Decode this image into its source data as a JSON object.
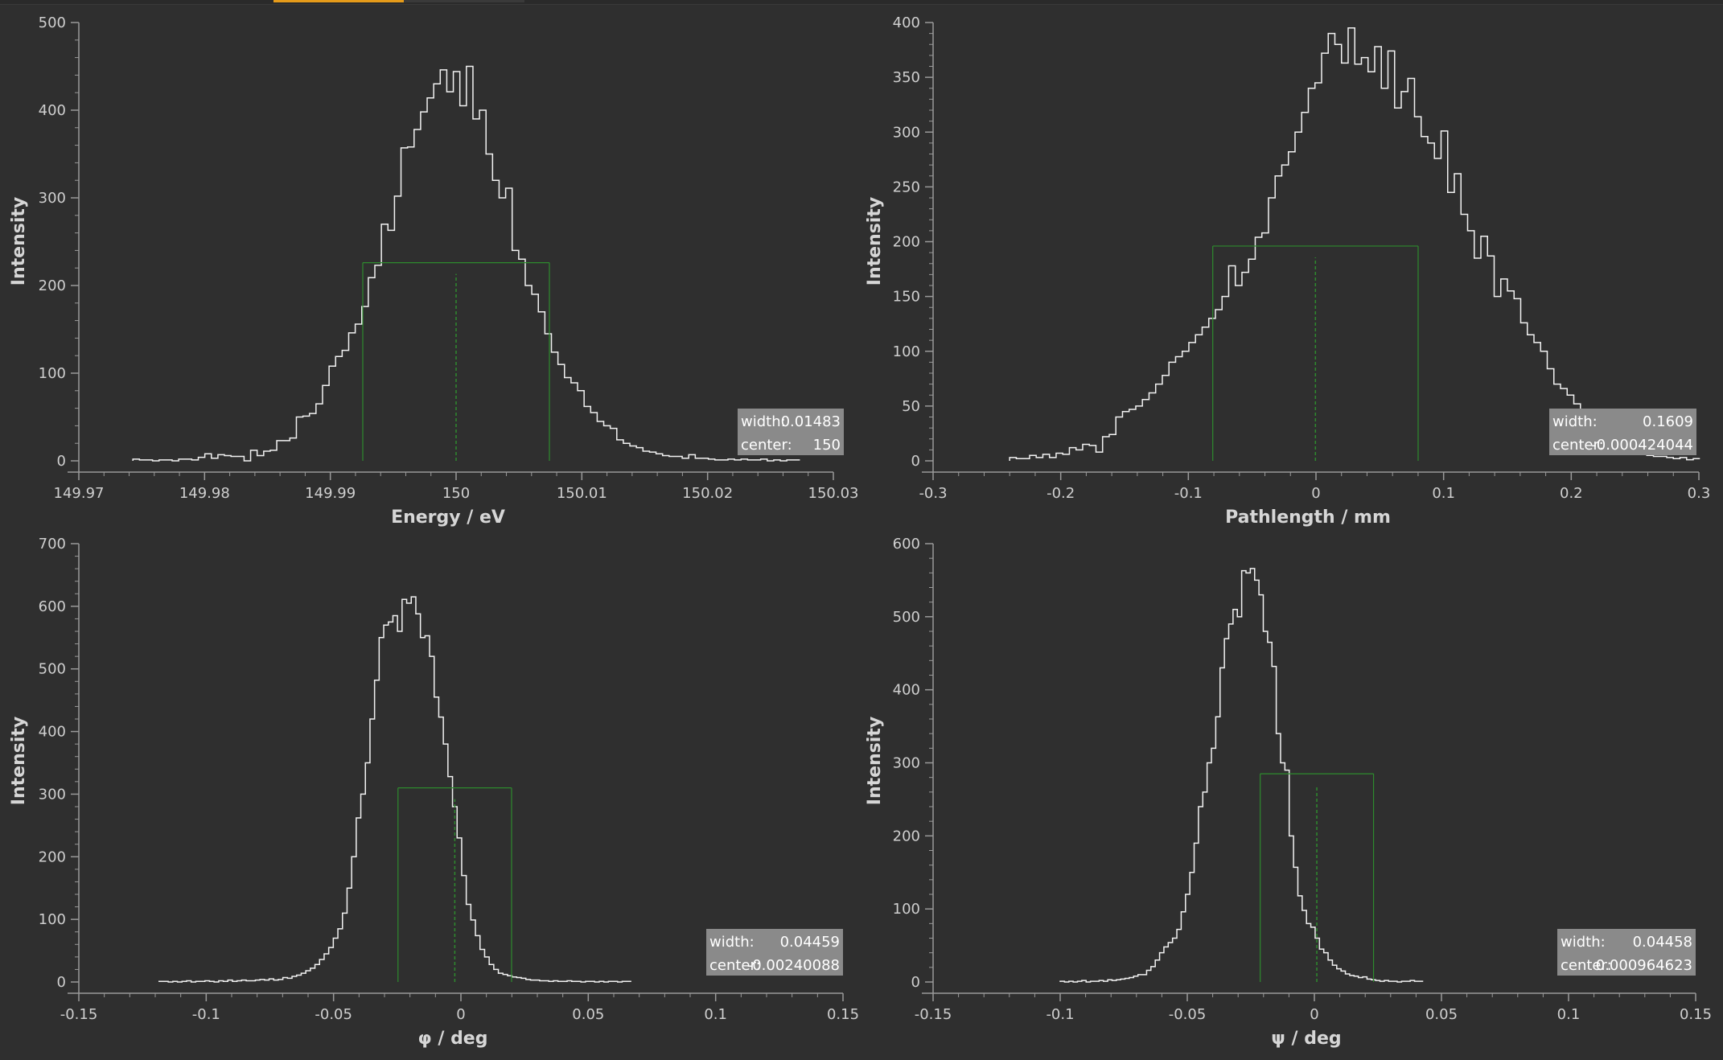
{
  "colors": {
    "background": "#2f2f2f",
    "axis": "#9a9a9a",
    "histogram": "#f2f2f2",
    "fwhm": "#2e8b2e",
    "info_box": "#8a8a8a",
    "tab_accent": "#e59b1a"
  },
  "chart_data": [
    {
      "type": "line",
      "subtype": "step-histogram",
      "xlabel": "Energy / eV",
      "ylabel": "Intensity",
      "xlim": [
        149.97,
        150.03
      ],
      "ylim": [
        0,
        500
      ],
      "xticks": [
        149.97,
        149.98,
        149.99,
        150,
        150.01,
        150.02,
        150.03
      ],
      "xtick_labels": [
        "149.97",
        "149.98",
        "149.99",
        "150",
        "150.01",
        "150.02",
        "150.03"
      ],
      "yticks": [
        0,
        100,
        200,
        300,
        400,
        500
      ],
      "ytick_labels": [
        "0",
        "100",
        "200",
        "300",
        "400",
        "500"
      ],
      "x_start": 149.9743,
      "bin_width": 0.00052,
      "counts": [
        2,
        1,
        1,
        0,
        1,
        1,
        0,
        2,
        2,
        1,
        4,
        8,
        3,
        7,
        6,
        5,
        5,
        0,
        12,
        6,
        11,
        12,
        23,
        23,
        26,
        50,
        51,
        54,
        65,
        86,
        108,
        119,
        126,
        146,
        156,
        176,
        209,
        223,
        270,
        263,
        302,
        357,
        358,
        378,
        398,
        414,
        430,
        446,
        421,
        444,
        405,
        450,
        390,
        400,
        350,
        320,
        300,
        311,
        240,
        230,
        200,
        190,
        170,
        145,
        124,
        110,
        95,
        89,
        80,
        62,
        55,
        45,
        40,
        37,
        24,
        20,
        17,
        15,
        11,
        10,
        8,
        6,
        5,
        5,
        3,
        7,
        3,
        3,
        2,
        1,
        1,
        2,
        1,
        2,
        1,
        1,
        2,
        0,
        1,
        0,
        1,
        1
      ],
      "fwhm_line": {
        "left": 149.99258,
        "right": 150.00742,
        "center": 150.0,
        "level": 226
      },
      "info": {
        "width_label": "width:",
        "width_value": "0.01483",
        "center_label": "center:",
        "center_value": "150"
      }
    },
    {
      "type": "line",
      "subtype": "step-histogram",
      "xlabel": "Pathlength / mm",
      "ylabel": "Intensity",
      "xlim": [
        -0.3,
        0.3
      ],
      "ylim": [
        0,
        400
      ],
      "xticks": [
        -0.3,
        -0.2,
        -0.1,
        0,
        0.1,
        0.2,
        0.3
      ],
      "xtick_labels": [
        "-0.3",
        "-0.2",
        "-0.1",
        "0",
        "0.1",
        "0.2",
        "0.3"
      ],
      "yticks": [
        0,
        50,
        100,
        150,
        200,
        250,
        300,
        350,
        400
      ],
      "ytick_labels": [
        "0",
        "50",
        "100",
        "150",
        "200",
        "250",
        "300",
        "350",
        "400"
      ],
      "x_start": -0.24,
      "bin_width": 0.0052,
      "counts": [
        3,
        2,
        2,
        5,
        3,
        6,
        3,
        7,
        6,
        12,
        10,
        15,
        14,
        8,
        22,
        24,
        40,
        45,
        47,
        50,
        56,
        62,
        70,
        78,
        90,
        95,
        100,
        108,
        115,
        122,
        130,
        138,
        150,
        178,
        160,
        172,
        184,
        204,
        208,
        240,
        260,
        270,
        282,
        300,
        318,
        340,
        345,
        372,
        390,
        380,
        363,
        395,
        362,
        368,
        355,
        378,
        340,
        374,
        322,
        337,
        349,
        314,
        296,
        290,
        276,
        301,
        245,
        262,
        225,
        210,
        185,
        205,
        187,
        150,
        166,
        155,
        148,
        126,
        115,
        108,
        100,
        84,
        70,
        66,
        60,
        52,
        47,
        42,
        38,
        30,
        24,
        18,
        15,
        12,
        8,
        6,
        5,
        4,
        4,
        3,
        2,
        3,
        1,
        2
      ],
      "fwhm_line": {
        "left": -0.08087,
        "right": 0.08003,
        "center": -0.000424,
        "level": 196
      },
      "info": {
        "width_label": "width:",
        "width_value": "0.1609",
        "center_label": "center:",
        "center_value": "-0.000424044"
      }
    },
    {
      "type": "line",
      "subtype": "step-histogram",
      "xlabel": "φ / deg",
      "ylabel": "Intensity",
      "xlim": [
        -0.15,
        0.15
      ],
      "ylim": [
        0,
        700
      ],
      "xticks": [
        -0.15,
        -0.1,
        -0.05,
        0,
        0.05,
        0.1,
        0.15
      ],
      "xtick_labels": [
        "-0.15",
        "-0.1",
        "-0.05",
        "0",
        "0.05",
        "0.1",
        "0.15"
      ],
      "yticks": [
        0,
        100,
        200,
        300,
        400,
        500,
        600,
        700
      ],
      "ytick_labels": [
        "0",
        "100",
        "200",
        "300",
        "400",
        "500",
        "600",
        "700"
      ],
      "x_start": -0.1185,
      "bin_width": 0.0018,
      "counts": [
        1,
        1,
        0,
        1,
        0,
        1,
        2,
        0,
        1,
        1,
        2,
        1,
        0,
        2,
        1,
        3,
        1,
        2,
        3,
        2,
        2,
        3,
        4,
        3,
        5,
        3,
        4,
        7,
        6,
        9,
        11,
        14,
        18,
        22,
        28,
        36,
        45,
        55,
        70,
        85,
        110,
        150,
        200,
        262,
        300,
        350,
        420,
        482,
        550,
        570,
        575,
        585,
        560,
        611,
        605,
        615,
        588,
        550,
        553,
        520,
        455,
        423,
        380,
        328,
        280,
        230,
        170,
        124,
        99,
        74,
        52,
        40,
        28,
        20,
        14,
        12,
        10,
        8,
        7,
        6,
        4,
        3,
        3,
        2,
        2,
        1,
        2,
        1,
        1,
        2,
        1,
        1,
        0,
        1,
        1,
        0,
        1,
        0,
        1,
        1,
        0,
        1,
        1
      ],
      "fwhm_line": {
        "left": -0.0247,
        "right": 0.01989,
        "center": -0.0024,
        "level": 310
      },
      "info": {
        "width_label": "width:",
        "width_value": "0.04459",
        "center_label": "center:",
        "center_value": "-0.00240088"
      }
    },
    {
      "type": "line",
      "subtype": "step-histogram",
      "xlabel": "ψ / deg",
      "ylabel": "Intensity",
      "xlim": [
        -0.15,
        0.15
      ],
      "ylim": [
        0,
        600
      ],
      "xticks": [
        -0.15,
        -0.1,
        -0.05,
        0,
        0.05,
        0.1,
        0.15
      ],
      "xtick_labels": [
        "-0.15",
        "-0.1",
        "-0.05",
        "0",
        "0.05",
        "0.1",
        "0.15"
      ],
      "yticks": [
        0,
        100,
        200,
        300,
        400,
        500,
        600
      ],
      "ytick_labels": [
        "0",
        "100",
        "200",
        "300",
        "400",
        "500",
        "600"
      ],
      "x_start": -0.1,
      "bin_width": 0.0017,
      "counts": [
        1,
        0,
        1,
        0,
        1,
        2,
        0,
        1,
        1,
        2,
        1,
        3,
        2,
        3,
        4,
        5,
        6,
        8,
        10,
        10,
        16,
        21,
        30,
        40,
        48,
        54,
        60,
        72,
        96,
        120,
        150,
        190,
        240,
        260,
        300,
        320,
        363,
        430,
        470,
        490,
        510,
        500,
        563,
        560,
        566,
        550,
        530,
        480,
        465,
        432,
        340,
        300,
        290,
        200,
        157,
        118,
        98,
        80,
        75,
        60,
        45,
        40,
        30,
        23,
        18,
        15,
        11,
        9,
        8,
        6,
        7,
        4,
        3,
        2,
        1,
        2,
        1,
        1,
        0,
        1,
        1,
        2,
        1,
        1
      ],
      "fwhm_line": {
        "left": -0.0213,
        "right": 0.02328,
        "center": 0.000965,
        "level": 285
      },
      "info": {
        "width_label": "width:",
        "width_value": "0.04458",
        "center_label": "center:",
        "center_value": "0.000964623"
      }
    }
  ]
}
